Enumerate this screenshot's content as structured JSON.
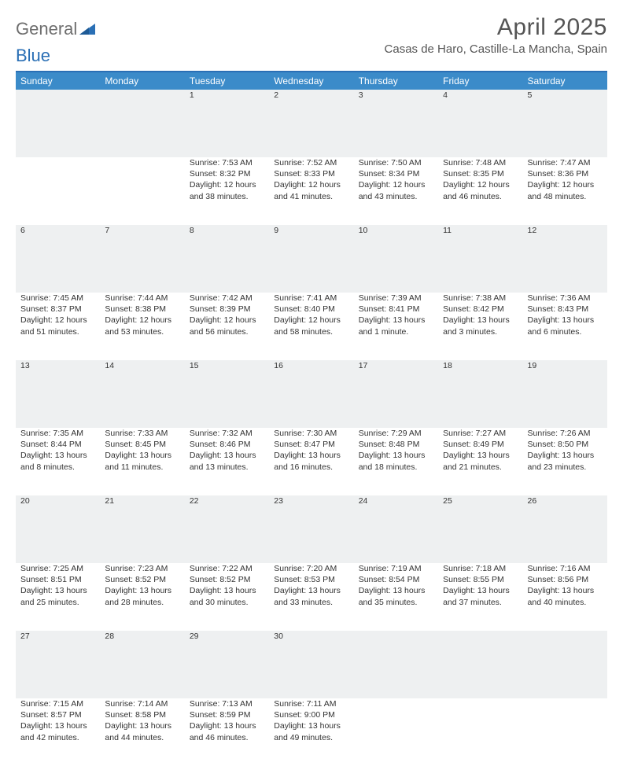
{
  "brand": {
    "part1": "General",
    "part2": "Blue"
  },
  "title": "April 2025",
  "location": "Casas de Haro, Castille-La Mancha, Spain",
  "colors": {
    "header_bg": "#3b8bc9",
    "border": "#2a6fb5",
    "daynum_bg": "#eef0f1",
    "text": "#333333",
    "title_text": "#555555"
  },
  "weekdays": [
    "Sunday",
    "Monday",
    "Tuesday",
    "Wednesday",
    "Thursday",
    "Friday",
    "Saturday"
  ],
  "weeks": [
    {
      "nums": [
        "",
        "",
        "1",
        "2",
        "3",
        "4",
        "5"
      ],
      "cells": [
        null,
        null,
        {
          "sunrise": "Sunrise: 7:53 AM",
          "sunset": "Sunset: 8:32 PM",
          "day1": "Daylight: 12 hours",
          "day2": "and 38 minutes."
        },
        {
          "sunrise": "Sunrise: 7:52 AM",
          "sunset": "Sunset: 8:33 PM",
          "day1": "Daylight: 12 hours",
          "day2": "and 41 minutes."
        },
        {
          "sunrise": "Sunrise: 7:50 AM",
          "sunset": "Sunset: 8:34 PM",
          "day1": "Daylight: 12 hours",
          "day2": "and 43 minutes."
        },
        {
          "sunrise": "Sunrise: 7:48 AM",
          "sunset": "Sunset: 8:35 PM",
          "day1": "Daylight: 12 hours",
          "day2": "and 46 minutes."
        },
        {
          "sunrise": "Sunrise: 7:47 AM",
          "sunset": "Sunset: 8:36 PM",
          "day1": "Daylight: 12 hours",
          "day2": "and 48 minutes."
        }
      ]
    },
    {
      "nums": [
        "6",
        "7",
        "8",
        "9",
        "10",
        "11",
        "12"
      ],
      "cells": [
        {
          "sunrise": "Sunrise: 7:45 AM",
          "sunset": "Sunset: 8:37 PM",
          "day1": "Daylight: 12 hours",
          "day2": "and 51 minutes."
        },
        {
          "sunrise": "Sunrise: 7:44 AM",
          "sunset": "Sunset: 8:38 PM",
          "day1": "Daylight: 12 hours",
          "day2": "and 53 minutes."
        },
        {
          "sunrise": "Sunrise: 7:42 AM",
          "sunset": "Sunset: 8:39 PM",
          "day1": "Daylight: 12 hours",
          "day2": "and 56 minutes."
        },
        {
          "sunrise": "Sunrise: 7:41 AM",
          "sunset": "Sunset: 8:40 PM",
          "day1": "Daylight: 12 hours",
          "day2": "and 58 minutes."
        },
        {
          "sunrise": "Sunrise: 7:39 AM",
          "sunset": "Sunset: 8:41 PM",
          "day1": "Daylight: 13 hours",
          "day2": "and 1 minute."
        },
        {
          "sunrise": "Sunrise: 7:38 AM",
          "sunset": "Sunset: 8:42 PM",
          "day1": "Daylight: 13 hours",
          "day2": "and 3 minutes."
        },
        {
          "sunrise": "Sunrise: 7:36 AM",
          "sunset": "Sunset: 8:43 PM",
          "day1": "Daylight: 13 hours",
          "day2": "and 6 minutes."
        }
      ]
    },
    {
      "nums": [
        "13",
        "14",
        "15",
        "16",
        "17",
        "18",
        "19"
      ],
      "cells": [
        {
          "sunrise": "Sunrise: 7:35 AM",
          "sunset": "Sunset: 8:44 PM",
          "day1": "Daylight: 13 hours",
          "day2": "and 8 minutes."
        },
        {
          "sunrise": "Sunrise: 7:33 AM",
          "sunset": "Sunset: 8:45 PM",
          "day1": "Daylight: 13 hours",
          "day2": "and 11 minutes."
        },
        {
          "sunrise": "Sunrise: 7:32 AM",
          "sunset": "Sunset: 8:46 PM",
          "day1": "Daylight: 13 hours",
          "day2": "and 13 minutes."
        },
        {
          "sunrise": "Sunrise: 7:30 AM",
          "sunset": "Sunset: 8:47 PM",
          "day1": "Daylight: 13 hours",
          "day2": "and 16 minutes."
        },
        {
          "sunrise": "Sunrise: 7:29 AM",
          "sunset": "Sunset: 8:48 PM",
          "day1": "Daylight: 13 hours",
          "day2": "and 18 minutes."
        },
        {
          "sunrise": "Sunrise: 7:27 AM",
          "sunset": "Sunset: 8:49 PM",
          "day1": "Daylight: 13 hours",
          "day2": "and 21 minutes."
        },
        {
          "sunrise": "Sunrise: 7:26 AM",
          "sunset": "Sunset: 8:50 PM",
          "day1": "Daylight: 13 hours",
          "day2": "and 23 minutes."
        }
      ]
    },
    {
      "nums": [
        "20",
        "21",
        "22",
        "23",
        "24",
        "25",
        "26"
      ],
      "cells": [
        {
          "sunrise": "Sunrise: 7:25 AM",
          "sunset": "Sunset: 8:51 PM",
          "day1": "Daylight: 13 hours",
          "day2": "and 25 minutes."
        },
        {
          "sunrise": "Sunrise: 7:23 AM",
          "sunset": "Sunset: 8:52 PM",
          "day1": "Daylight: 13 hours",
          "day2": "and 28 minutes."
        },
        {
          "sunrise": "Sunrise: 7:22 AM",
          "sunset": "Sunset: 8:52 PM",
          "day1": "Daylight: 13 hours",
          "day2": "and 30 minutes."
        },
        {
          "sunrise": "Sunrise: 7:20 AM",
          "sunset": "Sunset: 8:53 PM",
          "day1": "Daylight: 13 hours",
          "day2": "and 33 minutes."
        },
        {
          "sunrise": "Sunrise: 7:19 AM",
          "sunset": "Sunset: 8:54 PM",
          "day1": "Daylight: 13 hours",
          "day2": "and 35 minutes."
        },
        {
          "sunrise": "Sunrise: 7:18 AM",
          "sunset": "Sunset: 8:55 PM",
          "day1": "Daylight: 13 hours",
          "day2": "and 37 minutes."
        },
        {
          "sunrise": "Sunrise: 7:16 AM",
          "sunset": "Sunset: 8:56 PM",
          "day1": "Daylight: 13 hours",
          "day2": "and 40 minutes."
        }
      ]
    },
    {
      "nums": [
        "27",
        "28",
        "29",
        "30",
        "",
        "",
        ""
      ],
      "cells": [
        {
          "sunrise": "Sunrise: 7:15 AM",
          "sunset": "Sunset: 8:57 PM",
          "day1": "Daylight: 13 hours",
          "day2": "and 42 minutes."
        },
        {
          "sunrise": "Sunrise: 7:14 AM",
          "sunset": "Sunset: 8:58 PM",
          "day1": "Daylight: 13 hours",
          "day2": "and 44 minutes."
        },
        {
          "sunrise": "Sunrise: 7:13 AM",
          "sunset": "Sunset: 8:59 PM",
          "day1": "Daylight: 13 hours",
          "day2": "and 46 minutes."
        },
        {
          "sunrise": "Sunrise: 7:11 AM",
          "sunset": "Sunset: 9:00 PM",
          "day1": "Daylight: 13 hours",
          "day2": "and 49 minutes."
        },
        null,
        null,
        null
      ]
    }
  ]
}
